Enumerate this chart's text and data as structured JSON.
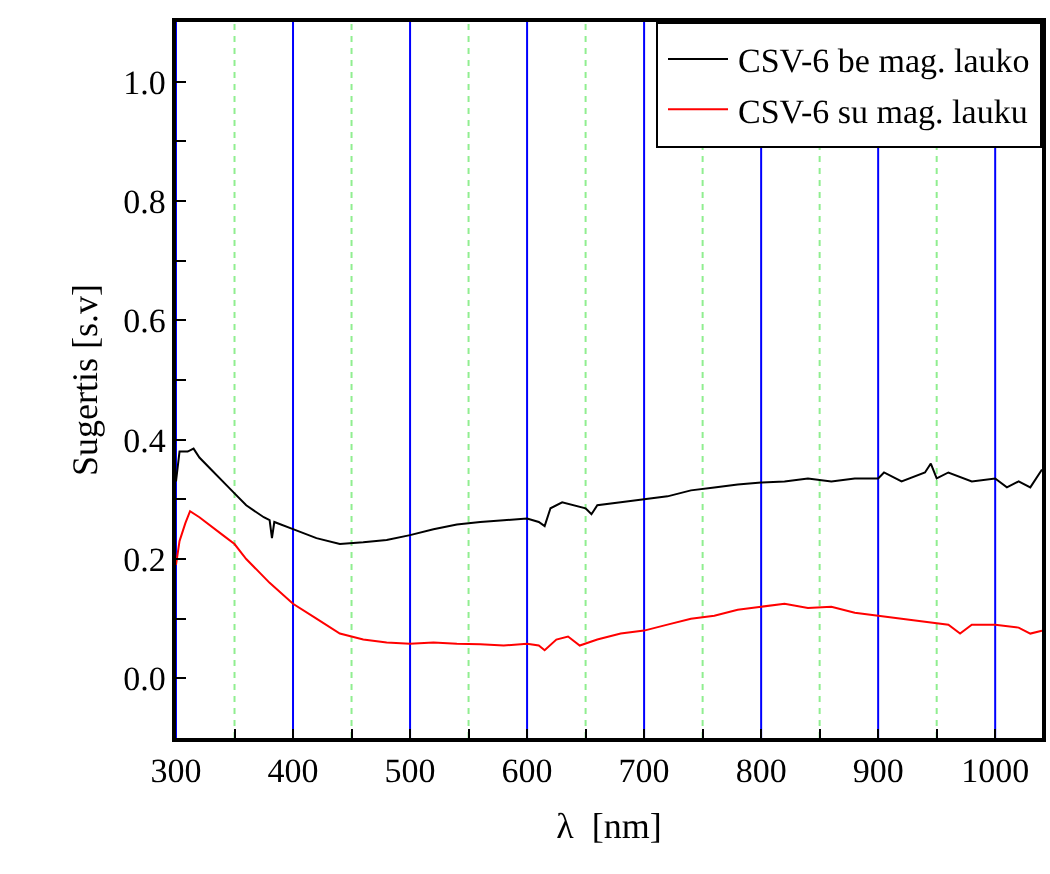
{
  "chart_data": {
    "type": "line",
    "xlabel": "λ  [nm]",
    "ylabel": "Sugertis [s.v]",
    "series": [
      {
        "name": "CSV-6 be mag. lauko",
        "color": "#000000",
        "x": [
          300,
          303,
          310,
          315,
          320,
          330,
          345,
          350,
          360,
          375,
          380,
          382,
          384,
          400,
          420,
          440,
          460,
          480,
          500,
          520,
          540,
          560,
          580,
          600,
          610,
          615,
          620,
          630,
          650,
          655,
          660,
          680,
          700,
          720,
          740,
          760,
          780,
          800,
          820,
          840,
          860,
          880,
          900,
          905,
          920,
          940,
          945,
          950,
          960,
          980,
          1000,
          1010,
          1020,
          1030,
          1040
        ],
        "values": [
          0.33,
          0.38,
          0.38,
          0.385,
          0.37,
          0.35,
          0.32,
          0.31,
          0.29,
          0.27,
          0.265,
          0.235,
          0.262,
          0.25,
          0.235,
          0.225,
          0.228,
          0.232,
          0.24,
          0.25,
          0.258,
          0.262,
          0.265,
          0.268,
          0.262,
          0.255,
          0.285,
          0.295,
          0.285,
          0.275,
          0.29,
          0.295,
          0.3,
          0.305,
          0.315,
          0.32,
          0.325,
          0.328,
          0.33,
          0.335,
          0.33,
          0.335,
          0.335,
          0.345,
          0.33,
          0.345,
          0.36,
          0.335,
          0.345,
          0.33,
          0.335,
          0.32,
          0.33,
          0.32,
          0.35
        ]
      },
      {
        "name": "CSV-6 su mag. lauku",
        "color": "#ff0000",
        "x": [
          300,
          303,
          308,
          312,
          320,
          340,
          350,
          360,
          380,
          400,
          420,
          440,
          460,
          480,
          500,
          520,
          540,
          560,
          580,
          600,
          610,
          615,
          625,
          635,
          645,
          660,
          680,
          700,
          720,
          740,
          760,
          780,
          800,
          820,
          840,
          860,
          880,
          900,
          920,
          940,
          960,
          970,
          980,
          1000,
          1020,
          1030,
          1040
        ],
        "values": [
          0.19,
          0.23,
          0.26,
          0.28,
          0.27,
          0.24,
          0.225,
          0.2,
          0.16,
          0.125,
          0.1,
          0.075,
          0.065,
          0.06,
          0.058,
          0.06,
          0.058,
          0.057,
          0.055,
          0.058,
          0.055,
          0.047,
          0.065,
          0.07,
          0.055,
          0.065,
          0.075,
          0.08,
          0.09,
          0.1,
          0.105,
          0.115,
          0.12,
          0.125,
          0.118,
          0.12,
          0.11,
          0.105,
          0.1,
          0.095,
          0.09,
          0.075,
          0.09,
          0.09,
          0.085,
          0.075,
          0.08
        ]
      }
    ],
    "xlim": [
      300,
      1040
    ],
    "xticks": [
      300,
      {
        "value": 350,
        "label": null
      },
      400,
      {
        "value": 450,
        "label": null
      },
      500,
      {
        "value": 550,
        "label": null
      },
      600,
      {
        "value": 650,
        "label": null
      },
      700,
      {
        "value": 750,
        "label": null
      },
      800,
      {
        "value": 850,
        "label": null
      },
      900,
      {
        "value": 950,
        "label": null
      },
      1000
    ],
    "ylim": [
      -0.1,
      1.1
    ],
    "yticks": [
      {
        "value": -0.1,
        "label": null
      },
      {
        "value": 0.0,
        "label": "0.0"
      },
      {
        "value": 0.1,
        "label": null
      },
      0.2,
      {
        "value": 0.3,
        "label": null
      },
      0.4,
      {
        "value": 0.5,
        "label": null
      },
      0.6,
      {
        "value": 0.7,
        "label": null
      },
      0.8,
      {
        "value": 0.9,
        "label": null
      },
      {
        "value": 1.0,
        "label": "1.0"
      },
      {
        "value": 1.1,
        "label": null
      }
    ],
    "grid": "x",
    "legend": "top right",
    "marker": "none",
    "line_style": "solid"
  }
}
